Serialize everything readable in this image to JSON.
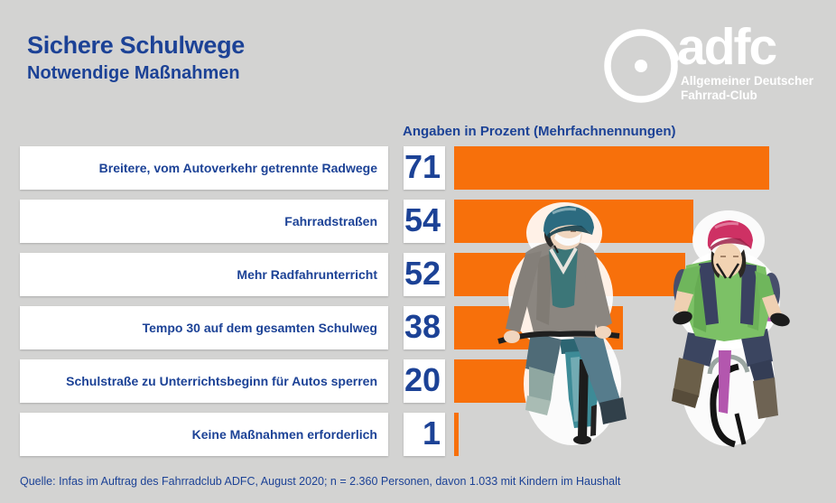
{
  "header": {
    "title": "Sichere Schulwege",
    "subtitle": "Notwendige Maßnahmen"
  },
  "logo": {
    "wordmark": "adfc",
    "line1": "Allgemeiner Deutscher",
    "line2": "Fahrrad-Club",
    "icon": "wheel-icon"
  },
  "chart_data": {
    "type": "bar",
    "orientation": "horizontal",
    "title": "Angaben in Prozent (Mehrfachnennungen)",
    "unit": "percent",
    "categories": [
      "Breitere, vom Autoverkehr getrennte Radwege",
      "Fahrradstraßen",
      "Mehr Radfahrunterricht",
      "Tempo 30 auf dem gesamten Schulweg",
      "Schulstraße zu Unterrichtsbeginn für Autos sperren",
      "Keine Maßnahmen erforderlich"
    ],
    "values": [
      71,
      54,
      52,
      38,
      20,
      1
    ],
    "xlim": [
      0,
      71
    ],
    "grid": false,
    "legend": false,
    "bar_color": "#f7700b"
  },
  "source": "Quelle: Infas im Auftrag des Fahrradclub ADFC, August 2020; n = 2.360 Personen, davon 1.033 mit Kindern im Haushalt",
  "colors": {
    "background": "#d3d3d2",
    "accent_orange": "#f7700b",
    "brand_blue": "#1c4296",
    "box_white": "#ffffff",
    "logo_white": "#ffffff"
  },
  "illustration": {
    "name": "two-children-on-bikes"
  }
}
